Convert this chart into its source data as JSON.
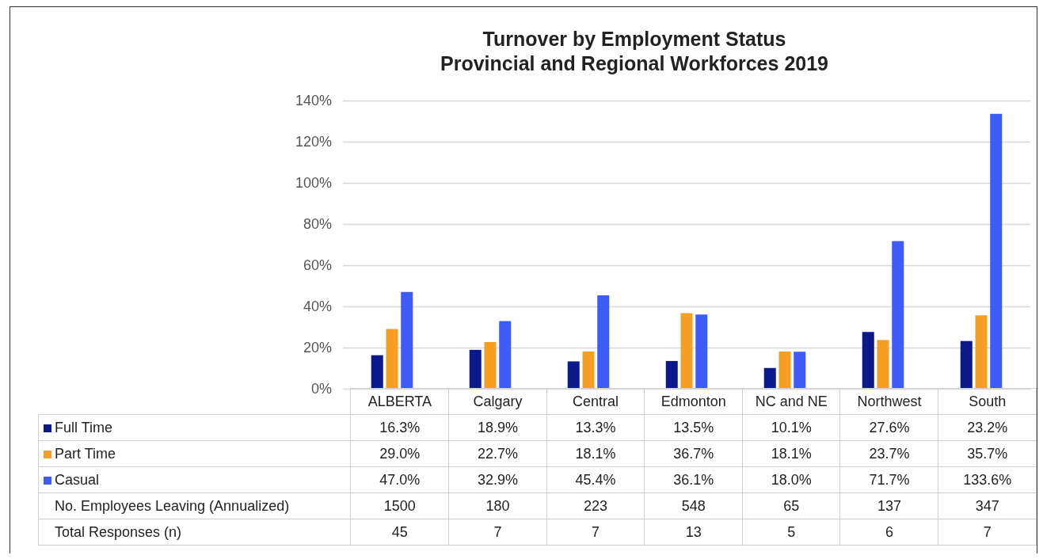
{
  "chart_data": {
    "type": "bar",
    "title": "Turnover by Employment Status",
    "subtitle": "Provincial and Regional Workforces 2019",
    "categories": [
      "ALBERTA",
      "Calgary",
      "Central",
      "Edmonton",
      "NC and NE",
      "Northwest",
      "South"
    ],
    "series": [
      {
        "name": "Full Time",
        "color": "#0a1a8c",
        "values": [
          16.3,
          18.9,
          13.3,
          13.5,
          10.1,
          27.6,
          23.2
        ],
        "value_labels": [
          "16.3%",
          "18.9%",
          "13.3%",
          "13.5%",
          "10.1%",
          "27.6%",
          "23.2%"
        ]
      },
      {
        "name": "Part Time",
        "color": "#f5a025",
        "values": [
          29.0,
          22.7,
          18.1,
          36.7,
          18.1,
          23.7,
          35.7
        ],
        "value_labels": [
          "29.0%",
          "22.7%",
          "18.1%",
          "36.7%",
          "18.1%",
          "23.7%",
          "35.7%"
        ]
      },
      {
        "name": "Casual",
        "color": "#3d5cfa",
        "values": [
          47.0,
          32.9,
          45.4,
          36.1,
          18.0,
          71.7,
          133.6
        ],
        "value_labels": [
          "47.0%",
          "32.9%",
          "45.4%",
          "36.1%",
          "18.0%",
          "71.7%",
          "133.6%"
        ]
      }
    ],
    "ylim": [
      0,
      140
    ],
    "yticks": [
      {
        "value": 0,
        "label": "0%"
      },
      {
        "value": 20,
        "label": "20%"
      },
      {
        "value": 40,
        "label": "40%"
      },
      {
        "value": 60,
        "label": "60%"
      },
      {
        "value": 80,
        "label": "80%"
      },
      {
        "value": 100,
        "label": "100%"
      },
      {
        "value": 120,
        "label": "120%"
      },
      {
        "value": 140,
        "label": "140%"
      }
    ],
    "grid": "y",
    "legend": "bottom left",
    "annotations": [
      "No. Employees Leaving (Annualized)",
      "1500",
      "180",
      "223",
      "548",
      "65",
      "137",
      "347",
      "Total Responses (n)",
      "45",
      "7",
      "7",
      "13",
      "5",
      "6",
      "7"
    ]
  }
}
